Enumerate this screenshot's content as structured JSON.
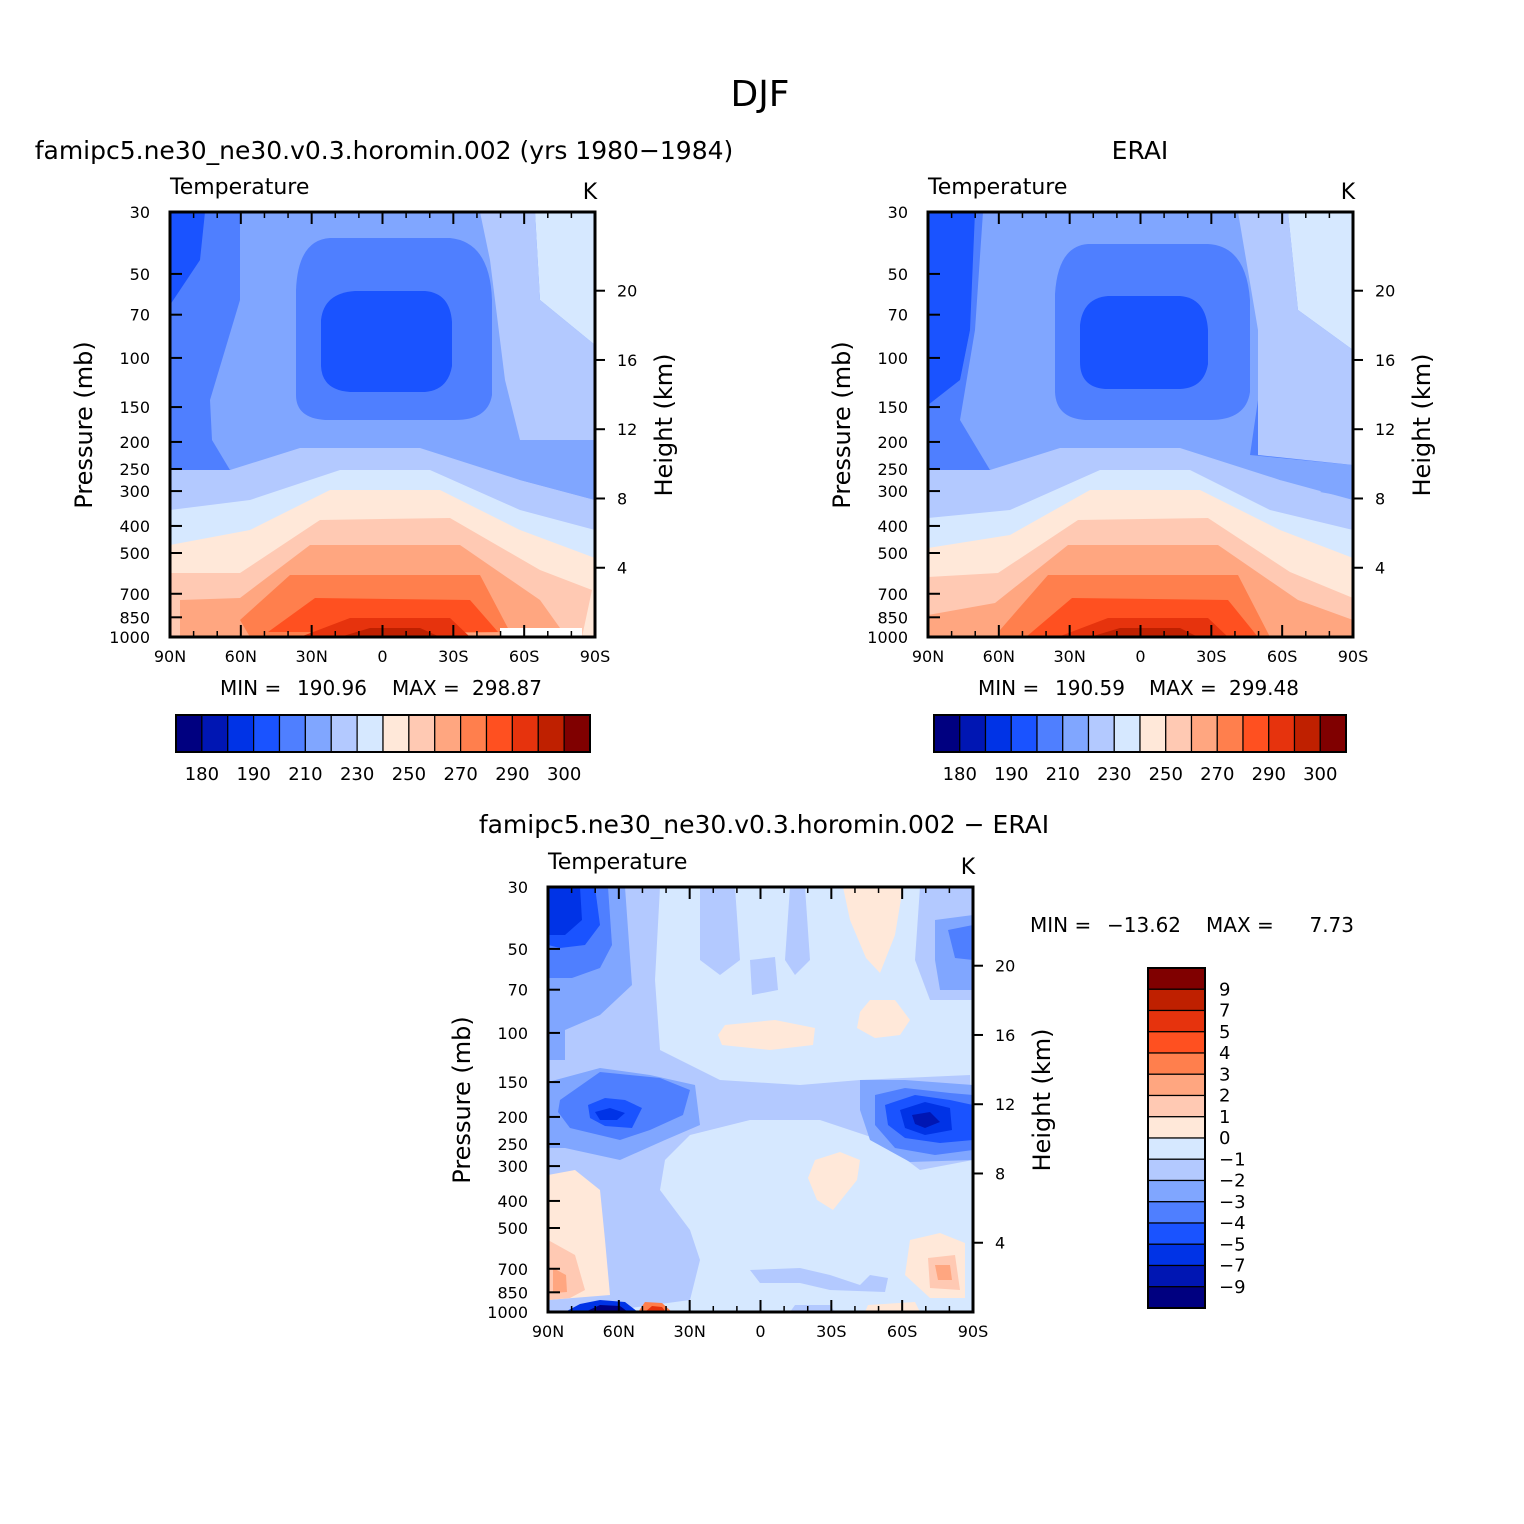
{
  "page_title": "DJF",
  "variable_label": "Temperature",
  "units_label": "K",
  "y_left_label": "Pressure (mb)",
  "y_right_label": "Height (km)",
  "x_ticks": [
    "90N",
    "60N",
    "30N",
    "0",
    "30S",
    "60S",
    "90S"
  ],
  "pressure_ticks": [
    "30",
    "50",
    "70",
    "100",
    "150",
    "200",
    "250",
    "300",
    "400",
    "500",
    "700",
    "850",
    "1000"
  ],
  "height_ticks": [
    "20",
    "16",
    "12",
    "8",
    "4"
  ],
  "palette": [
    "#000080",
    "#0016b3",
    "#0033e6",
    "#1a53ff",
    "#4f7fff",
    "#80a6ff",
    "#b3c9ff",
    "#d6e8ff",
    "#ffe8d9",
    "#ffc9b3",
    "#ffa680",
    "#ff7f4d",
    "#ff5020",
    "#e6330d",
    "#bf2000",
    "#800000"
  ],
  "chart_data": [
    {
      "type": "heatmap",
      "title": "famipc5.ne30_ne30.v0.3.horomin.002 (yrs 1980−1984)",
      "stats": {
        "min_label": "MIN =",
        "min": "190.96",
        "max_label": "MAX =",
        "max": "298.87"
      },
      "colorbar_labels": [
        "180",
        "190",
        "210",
        "230",
        "250",
        "270",
        "290",
        "300"
      ]
    },
    {
      "type": "heatmap",
      "title": "ERAI",
      "stats": {
        "min_label": "MIN =",
        "min": "190.59",
        "max_label": "MAX =",
        "max": "299.48"
      },
      "colorbar_labels": [
        "180",
        "190",
        "210",
        "230",
        "250",
        "270",
        "290",
        "300"
      ]
    },
    {
      "type": "heatmap",
      "title": "famipc5.ne30_ne30.v0.3.horomin.002 − ERAI",
      "stats": {
        "min_label": "MIN =",
        "min": "−13.62",
        "max_label": "MAX =",
        "max": "7.73"
      },
      "colorbar_labels": [
        "9",
        "7",
        "5",
        "4",
        "3",
        "2",
        "1",
        "0",
        "−1",
        "−2",
        "−3",
        "−4",
        "−5",
        "−7",
        "−9"
      ]
    }
  ]
}
